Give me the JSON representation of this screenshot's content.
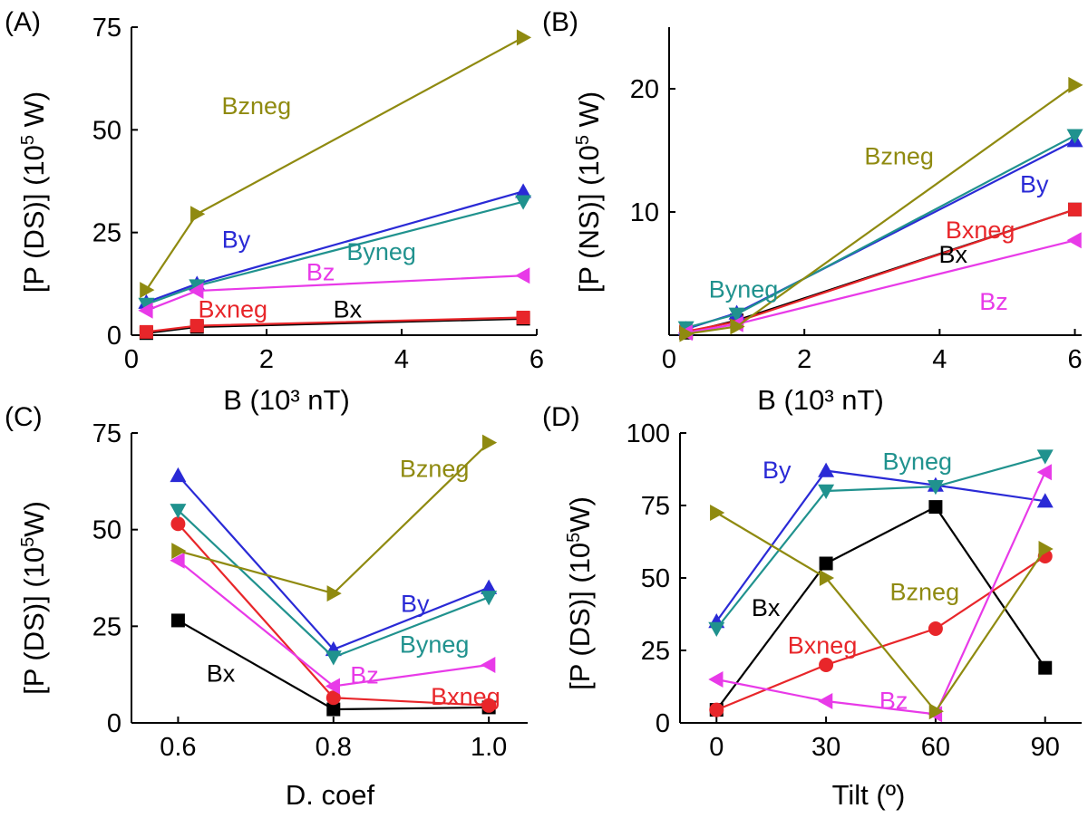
{
  "colors": {
    "Bx": "#000000",
    "Bxneg": "#e8262a",
    "By": "#2a2ad6",
    "Byneg": "#20928e",
    "Bz": "#e83ae8",
    "Bzneg": "#8f8a10"
  },
  "chart_data": [
    {
      "panel": "(A)",
      "type": "line",
      "xlabel": "B (10³ nT)",
      "ylabel": "[P (DS)] (10^5 W)",
      "xlim": [
        0,
        6
      ],
      "ylim": [
        0,
        75
      ],
      "xticks": [
        0,
        2,
        4,
        6
      ],
      "yticks": [
        0,
        25,
        50,
        75
      ],
      "xtick_labels": [
        "0",
        "2",
        "4",
        "6"
      ],
      "ytick_labels": [
        "0",
        "25",
        "50",
        "75"
      ],
      "series": [
        {
          "name": "Bx",
          "marker": "square",
          "x": [
            0.22,
            0.97,
            5.8
          ],
          "y": [
            0.5,
            2,
            4
          ]
        },
        {
          "name": "Bxneg",
          "marker": "square",
          "x": [
            0.22,
            0.97,
            5.8
          ],
          "y": [
            0.8,
            2.3,
            4.3
          ]
        },
        {
          "name": "By",
          "marker": "triangle-up",
          "x": [
            0.22,
            0.97,
            5.8
          ],
          "y": [
            8,
            12.5,
            35
          ]
        },
        {
          "name": "Byneg",
          "marker": "triangle-down",
          "x": [
            0.22,
            0.97,
            5.8
          ],
          "y": [
            7.5,
            12,
            32.5
          ]
        },
        {
          "name": "Bz",
          "marker": "triangle-left",
          "x": [
            0.22,
            0.97,
            5.8
          ],
          "y": [
            6,
            10.8,
            14.5
          ]
        },
        {
          "name": "Bzneg",
          "marker": "triangle-right",
          "x": [
            0.22,
            0.97,
            5.8
          ],
          "y": [
            11,
            29.5,
            72.5
          ]
        }
      ],
      "annotations": [
        {
          "text": "Bzneg",
          "series": "Bzneg",
          "x": 1.85,
          "y": 56
        },
        {
          "text": "By",
          "series": "By",
          "x": 1.55,
          "y": 23.5
        },
        {
          "text": "Byneg",
          "series": "Byneg",
          "x": 3.7,
          "y": 20.5
        },
        {
          "text": "Bz",
          "series": "Bz",
          "x": 2.8,
          "y": 15.5
        },
        {
          "text": "Bxneg",
          "series": "Bxneg",
          "x": 1.5,
          "y": 6.5
        },
        {
          "text": "Bx",
          "series": "Bx",
          "x": 3.2,
          "y": 6.5
        }
      ]
    },
    {
      "panel": "(B)",
      "type": "line",
      "xlabel": "B (10³ nT)",
      "ylabel": "[P (NS)] (10^5 W)",
      "xlim": [
        0,
        6.1
      ],
      "ylim": [
        0,
        25
      ],
      "xticks": [
        0,
        2,
        4,
        6
      ],
      "yticks": [
        10,
        20
      ],
      "xtick_labels": [
        "0",
        "2",
        "4",
        "6"
      ],
      "ytick_labels": [
        "10",
        "20"
      ],
      "series": [
        {
          "name": "Bx",
          "marker": "square",
          "x": [
            0.25,
            1,
            6
          ],
          "y": [
            0.2,
            1.2,
            10.2
          ]
        },
        {
          "name": "Bxneg",
          "marker": "square",
          "x": [
            0.25,
            1,
            6
          ],
          "y": [
            0.3,
            1.1,
            10.2
          ]
        },
        {
          "name": "By",
          "marker": "triangle-up",
          "x": [
            0.25,
            1,
            6
          ],
          "y": [
            0.5,
            1.8,
            15.8
          ]
        },
        {
          "name": "Byneg",
          "marker": "triangle-down",
          "x": [
            0.25,
            1,
            6
          ],
          "y": [
            0.6,
            1.7,
            16.2
          ]
        },
        {
          "name": "Bz",
          "marker": "triangle-left",
          "x": [
            0.25,
            1,
            6
          ],
          "y": [
            0.2,
            0.9,
            7.7
          ]
        },
        {
          "name": "Bzneg",
          "marker": "triangle-right",
          "x": [
            0.25,
            1,
            6
          ],
          "y": [
            0.1,
            0.7,
            20.3
          ]
        }
      ],
      "annotations": [
        {
          "text": "Bzneg",
          "series": "Bzneg",
          "x": 3.4,
          "y": 14.6
        },
        {
          "text": "By",
          "series": "By",
          "x": 5.4,
          "y": 12.3
        },
        {
          "text": "Bxneg",
          "series": "Bxneg",
          "x": 4.6,
          "y": 8.6
        },
        {
          "text": "Bx",
          "series": "Bx",
          "x": 4.2,
          "y": 6.6
        },
        {
          "text": "Byneg",
          "series": "Byneg",
          "x": 1.1,
          "y": 3.8
        },
        {
          "text": "Bz",
          "series": "Bz",
          "x": 4.8,
          "y": 2.8
        }
      ]
    },
    {
      "panel": "(C)",
      "type": "line",
      "xlabel": "D. coef",
      "ylabel": "[P (DS)] (10^5W)",
      "xlim": [
        0.54,
        1.05
      ],
      "ylim": [
        0,
        75
      ],
      "xticks": [
        0.6,
        0.8,
        1.0
      ],
      "yticks": [
        0,
        25,
        50,
        75
      ],
      "xtick_labels": [
        "0.6",
        "0.8",
        "1.0"
      ],
      "ytick_labels": [
        "0",
        "25",
        "50",
        "75"
      ],
      "series": [
        {
          "name": "Bx",
          "marker": "square",
          "x": [
            0.6,
            0.8,
            1.0
          ],
          "y": [
            26.5,
            3.5,
            4
          ]
        },
        {
          "name": "Bxneg",
          "marker": "circle",
          "x": [
            0.6,
            0.8,
            1.0
          ],
          "y": [
            51.5,
            6.5,
            4.5
          ]
        },
        {
          "name": "By",
          "marker": "triangle-up",
          "x": [
            0.6,
            0.8,
            1.0
          ],
          "y": [
            64,
            19,
            35
          ]
        },
        {
          "name": "Byneg",
          "marker": "triangle-down",
          "x": [
            0.6,
            0.8,
            1.0
          ],
          "y": [
            55,
            17,
            32.5
          ]
        },
        {
          "name": "Bz",
          "marker": "triangle-left",
          "x": [
            0.6,
            0.8,
            1.0
          ],
          "y": [
            42,
            9.5,
            15
          ]
        },
        {
          "name": "Bzneg",
          "marker": "triangle-right",
          "x": [
            0.6,
            0.8,
            1.0
          ],
          "y": [
            44.5,
            33.5,
            72.5
          ]
        }
      ],
      "annotations": [
        {
          "text": "Bzneg",
          "series": "Bzneg",
          "x": 0.93,
          "y": 66
        },
        {
          "text": "By",
          "series": "By",
          "x": 0.905,
          "y": 31
        },
        {
          "text": "Byneg",
          "series": "Byneg",
          "x": 0.93,
          "y": 20.5
        },
        {
          "text": "Bz",
          "series": "Bz",
          "x": 0.84,
          "y": 12.5
        },
        {
          "text": "Bxneg",
          "series": "Bxneg",
          "x": 0.97,
          "y": 7
        },
        {
          "text": "Bx",
          "series": "Bx",
          "x": 0.655,
          "y": 13
        }
      ]
    },
    {
      "panel": "(D)",
      "type": "line",
      "xlabel": "Tilt (º)",
      "ylabel": "[P (DS)] (10^5W)",
      "xlim": [
        -10,
        100
      ],
      "ylim": [
        0,
        100
      ],
      "xticks": [
        0,
        30,
        60,
        90
      ],
      "yticks": [
        0,
        25,
        50,
        75,
        100
      ],
      "xtick_labels": [
        "0",
        "30",
        "60",
        "90"
      ],
      "ytick_labels": [
        "0",
        "25",
        "50",
        "75",
        "100"
      ],
      "series": [
        {
          "name": "Bx",
          "marker": "square",
          "x": [
            0,
            30,
            60,
            90
          ],
          "y": [
            4.5,
            55,
            74.5,
            19
          ]
        },
        {
          "name": "Bxneg",
          "marker": "circle",
          "x": [
            0,
            30,
            60,
            90
          ],
          "y": [
            4.5,
            20,
            32.5,
            57.5
          ]
        },
        {
          "name": "By",
          "marker": "triangle-up",
          "x": [
            0,
            30,
            60,
            90
          ],
          "y": [
            35,
            87,
            82,
            76.5
          ]
        },
        {
          "name": "Byneg",
          "marker": "triangle-down",
          "x": [
            0,
            30,
            60,
            90
          ],
          "y": [
            32.5,
            80,
            81.5,
            92
          ]
        },
        {
          "name": "Bz",
          "marker": "triangle-left",
          "x": [
            0,
            30,
            60,
            90
          ],
          "y": [
            15,
            7.5,
            3,
            86.5
          ]
        },
        {
          "name": "Bzneg",
          "marker": "triangle-right",
          "x": [
            0,
            30,
            60,
            90
          ],
          "y": [
            72.5,
            50,
            4,
            60
          ]
        }
      ],
      "annotations": [
        {
          "text": "By",
          "series": "By",
          "x": 16.5,
          "y": 87.5
        },
        {
          "text": "Byneg",
          "series": "Byneg",
          "x": 55,
          "y": 90.5
        },
        {
          "text": "Bx",
          "series": "Bx",
          "x": 13.5,
          "y": 40
        },
        {
          "text": "Bzneg",
          "series": "Bzneg",
          "x": 57,
          "y": 45.5
        },
        {
          "text": "Bxneg",
          "series": "Bxneg",
          "x": 29,
          "y": 27
        },
        {
          "text": "Bz",
          "series": "Bz",
          "x": 48.5,
          "y": 8
        }
      ]
    }
  ]
}
